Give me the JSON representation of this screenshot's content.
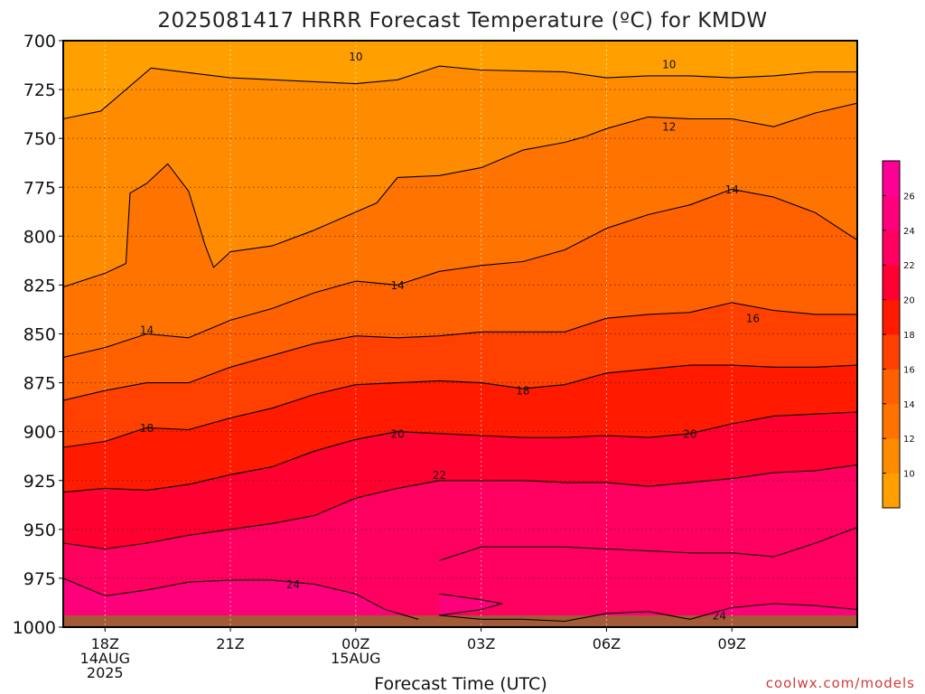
{
  "chart_data": {
    "type": "contour",
    "title": "2025081417 HRRR Forecast Temperature (ºC) for KMDW",
    "xlabel": "Forecast Time (UTC)",
    "ylabel": "",
    "credit": "coolwx.com/models",
    "x_range_hours_from_18Z": [
      -1,
      18
    ],
    "y_range_hpa": [
      1000,
      700
    ],
    "y_ticks": [
      "700",
      "725",
      "750",
      "775",
      "800",
      "825",
      "850",
      "875",
      "900",
      "925",
      "950",
      "975",
      "1000"
    ],
    "x_ticks": [
      {
        "hour": 0,
        "lines": [
          "18Z",
          "14AUG",
          "2025"
        ]
      },
      {
        "hour": 3,
        "lines": [
          "21Z"
        ]
      },
      {
        "hour": 6,
        "lines": [
          "00Z",
          "15AUG"
        ]
      },
      {
        "hour": 9,
        "lines": [
          "03Z"
        ]
      },
      {
        "hour": 12,
        "lines": [
          "06Z"
        ]
      },
      {
        "hour": 15,
        "lines": [
          "09Z"
        ]
      }
    ],
    "grid": true,
    "colorbar": {
      "labels": [
        "10",
        "12",
        "14",
        "16",
        "18",
        "20",
        "22",
        "24",
        "26"
      ],
      "bands": [
        {
          "from": 8,
          "to": 10,
          "color": "#ffa000"
        },
        {
          "from": 10,
          "to": 12,
          "color": "#ff8c00"
        },
        {
          "from": 12,
          "to": 14,
          "color": "#ff7400"
        },
        {
          "from": 14,
          "to": 16,
          "color": "#ff6000"
        },
        {
          "from": 16,
          "to": 18,
          "color": "#ff4000"
        },
        {
          "from": 18,
          "to": 20,
          "color": "#ff1a00"
        },
        {
          "from": 20,
          "to": 22,
          "color": "#ff0030"
        },
        {
          "from": 22,
          "to": 24,
          "color": "#ff0060"
        },
        {
          "from": 24,
          "to": 26,
          "color": "#ff007c"
        },
        {
          "from": 26,
          "to": 28,
          "color": "#ff0096"
        }
      ]
    },
    "isotherms": [
      {
        "value": "10",
        "labels": [
          {
            "hour": 6,
            "hpa": 708
          },
          {
            "hour": 13.5,
            "hpa": 712
          }
        ],
        "points": [
          [
            -1,
            740
          ],
          [
            -0.1,
            736
          ],
          [
            1.1,
            714
          ],
          [
            3,
            719
          ],
          [
            6,
            722
          ],
          [
            7,
            720
          ],
          [
            8,
            713
          ],
          [
            9,
            715
          ],
          [
            11,
            716
          ],
          [
            12,
            719
          ],
          [
            13,
            718
          ],
          [
            14,
            718
          ],
          [
            15,
            719
          ],
          [
            16,
            718
          ],
          [
            17,
            716
          ],
          [
            18,
            716
          ]
        ]
      },
      {
        "value": "12",
        "labels": [
          {
            "hour": 13.5,
            "hpa": 744
          }
        ],
        "points": [
          [
            -1,
            826
          ],
          [
            0,
            819
          ],
          [
            0.5,
            814
          ],
          [
            0.6,
            778
          ],
          [
            1,
            773
          ],
          [
            1.5,
            763
          ],
          [
            2,
            777
          ],
          [
            2.4,
            805
          ],
          [
            2.6,
            816
          ],
          [
            3,
            808
          ],
          [
            4,
            805
          ],
          [
            5,
            797
          ],
          [
            6.5,
            783
          ],
          [
            7,
            770
          ],
          [
            8,
            769
          ],
          [
            9,
            765
          ],
          [
            10,
            756
          ],
          [
            11,
            752
          ],
          [
            11.5,
            749
          ],
          [
            12,
            745
          ],
          [
            13,
            739
          ],
          [
            14,
            740
          ],
          [
            15,
            740
          ],
          [
            16,
            744
          ],
          [
            17,
            737
          ],
          [
            18,
            732
          ]
        ]
      },
      {
        "value": "14",
        "labels": [
          {
            "hour": 1,
            "hpa": 848
          },
          {
            "hour": 7,
            "hpa": 825
          },
          {
            "hour": 15,
            "hpa": 776
          }
        ],
        "points": [
          [
            -1,
            862
          ],
          [
            0,
            857
          ],
          [
            1,
            850
          ],
          [
            2,
            852
          ],
          [
            3,
            843
          ],
          [
            4,
            837
          ],
          [
            5,
            829
          ],
          [
            6,
            823
          ],
          [
            7,
            825
          ],
          [
            8,
            818
          ],
          [
            9,
            815
          ],
          [
            10,
            813
          ],
          [
            11,
            807
          ],
          [
            12,
            796
          ],
          [
            13,
            789
          ],
          [
            14,
            784
          ],
          [
            15,
            776
          ],
          [
            16,
            780
          ],
          [
            17,
            788
          ],
          [
            18,
            802
          ]
        ]
      },
      {
        "value": "16",
        "labels": [
          {
            "hour": 15.5,
            "hpa": 842
          }
        ],
        "points": [
          [
            -1,
            884
          ],
          [
            0,
            879
          ],
          [
            1,
            875
          ],
          [
            2,
            875
          ],
          [
            3,
            867
          ],
          [
            4,
            861
          ],
          [
            5,
            855
          ],
          [
            6,
            851
          ],
          [
            7,
            852
          ],
          [
            8,
            851
          ],
          [
            9,
            849
          ],
          [
            10,
            849
          ],
          [
            11,
            849
          ],
          [
            12,
            842
          ],
          [
            13,
            840
          ],
          [
            14,
            839
          ],
          [
            15,
            834
          ],
          [
            16,
            838
          ],
          [
            17,
            840
          ],
          [
            18,
            840
          ]
        ]
      },
      {
        "value": "18",
        "labels": [
          {
            "hour": 1,
            "hpa": 898
          },
          {
            "hour": 10,
            "hpa": 879
          }
        ],
        "points": [
          [
            -1,
            908
          ],
          [
            0,
            905
          ],
          [
            1,
            898
          ],
          [
            2,
            899
          ],
          [
            3,
            893
          ],
          [
            4,
            888
          ],
          [
            5,
            881
          ],
          [
            6,
            876
          ],
          [
            7,
            875
          ],
          [
            8,
            874
          ],
          [
            9,
            875
          ],
          [
            10,
            878
          ],
          [
            11,
            876
          ],
          [
            12,
            870
          ],
          [
            13,
            868
          ],
          [
            14,
            866
          ],
          [
            15,
            866
          ],
          [
            16,
            867
          ],
          [
            17,
            867
          ],
          [
            18,
            866
          ]
        ]
      },
      {
        "value": "20",
        "labels": [
          {
            "hour": 7,
            "hpa": 901
          },
          {
            "hour": 14,
            "hpa": 901
          }
        ],
        "points": [
          [
            -1,
            931
          ],
          [
            0,
            929
          ],
          [
            1,
            930
          ],
          [
            2,
            927
          ],
          [
            3,
            922
          ],
          [
            4,
            918
          ],
          [
            5,
            910
          ],
          [
            6,
            904
          ],
          [
            7,
            900
          ],
          [
            8,
            901
          ],
          [
            9,
            902
          ],
          [
            10,
            903
          ],
          [
            11,
            903
          ],
          [
            12,
            902
          ],
          [
            13,
            903
          ],
          [
            14,
            901
          ],
          [
            15,
            896
          ],
          [
            16,
            892
          ],
          [
            17,
            891
          ],
          [
            18,
            890
          ]
        ]
      },
      {
        "value": "22",
        "labels": [
          {
            "hour": 8,
            "hpa": 922
          }
        ],
        "points": [
          [
            -1,
            957
          ],
          [
            0,
            960
          ],
          [
            1,
            957
          ],
          [
            2,
            953
          ],
          [
            3,
            950
          ],
          [
            4,
            947
          ],
          [
            5,
            943
          ],
          [
            6,
            934
          ],
          [
            7,
            929
          ],
          [
            8,
            925
          ],
          [
            9,
            925
          ],
          [
            10,
            925
          ],
          [
            11,
            926
          ],
          [
            12,
            926
          ],
          [
            13,
            928
          ],
          [
            14,
            926
          ],
          [
            15,
            924
          ],
          [
            16,
            921
          ],
          [
            17,
            920
          ],
          [
            18,
            917
          ]
        ]
      },
      {
        "value": "22",
        "labels": [],
        "points": [
          [
            8,
            966
          ],
          [
            9,
            959
          ],
          [
            10,
            959
          ],
          [
            11,
            959
          ],
          [
            12,
            960
          ],
          [
            13,
            961
          ],
          [
            14,
            962
          ],
          [
            15,
            962
          ],
          [
            16,
            964
          ],
          [
            17,
            957
          ],
          [
            18,
            949
          ]
        ]
      },
      {
        "value": "24",
        "labels": [
          {
            "hour": 4.5,
            "hpa": 978
          },
          {
            "hour": 14.7,
            "hpa": 994
          }
        ],
        "points": [
          [
            -1,
            975
          ],
          [
            0,
            984
          ],
          [
            1,
            981
          ],
          [
            2,
            977
          ],
          [
            3,
            976
          ],
          [
            4,
            976
          ],
          [
            5,
            978
          ],
          [
            6,
            983
          ],
          [
            6.7,
            991
          ],
          [
            7.5,
            996
          ]
        ]
      },
      {
        "value": "24",
        "labels": [],
        "points": [
          [
            8,
            983
          ],
          [
            9,
            986
          ],
          [
            9.5,
            988
          ],
          [
            9,
            991
          ],
          [
            8,
            994
          ],
          [
            9,
            996
          ],
          [
            10,
            996
          ],
          [
            11,
            997
          ],
          [
            12,
            993
          ],
          [
            13,
            992
          ],
          [
            14,
            996
          ],
          [
            15,
            990
          ],
          [
            16,
            988
          ],
          [
            17,
            989
          ],
          [
            18,
            991
          ]
        ]
      }
    ],
    "surface": {
      "color": "#a35a36",
      "from_hpa": 994,
      "to_hpa": 1000
    }
  }
}
